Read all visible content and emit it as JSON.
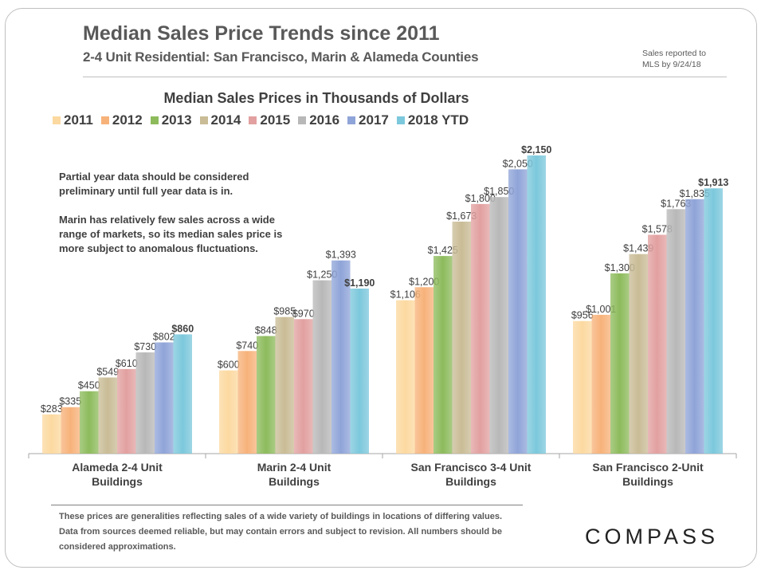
{
  "header": {
    "title": "Median Sales Price Trends since 2011",
    "subtitle": "2-4 Unit Residential: San Francisco, Marin & Alameda Counties",
    "note_line1": "Sales reported to",
    "note_line2": "MLS by 9/24/18"
  },
  "annotation": {
    "para1": "Partial year data should be considered preliminary until full year data is in.",
    "para2": "Marin has relatively few sales across a wide range of markets, so its median sales price is more subject to anomalous fluctuations."
  },
  "footer": {
    "disclaimer": "These prices are generalities reflecting sales of a wide variety of buildings in locations of differing values. Data from sources deemed reliable, but may contain errors and subject to revision. All numbers  should be considered approximations.",
    "logo": "COMPASS"
  },
  "chart_data": {
    "type": "bar",
    "title": "Median Sales Prices in Thousands of Dollars",
    "categories": [
      [
        "Alameda 2-4 Unit",
        "Buildings"
      ],
      [
        "Marin 2-4 Unit",
        "Buildings"
      ],
      [
        "San Francisco 3-4 Unit",
        "Buildings"
      ],
      [
        "San Francisco 2-Unit",
        "Buildings"
      ]
    ],
    "ylim": [
      0,
      2150
    ],
    "legend_position": "top",
    "grid": false,
    "series": [
      {
        "name": "2011",
        "color": "#fcd9a0",
        "values": [
          283,
          600,
          1106,
          956
        ],
        "labels": [
          "$283",
          "$600",
          "$1,106",
          "$956"
        ]
      },
      {
        "name": "2012",
        "color": "#f7b27a",
        "values": [
          335,
          740,
          1200,
          1001
        ],
        "labels": [
          "$335",
          "$740",
          "$1,200",
          "$1,001"
        ]
      },
      {
        "name": "2013",
        "color": "#8dbb5c",
        "values": [
          450,
          848,
          1425,
          1300
        ],
        "labels": [
          "$450",
          "$848",
          "$1,425",
          "$1,300"
        ]
      },
      {
        "name": "2014",
        "color": "#c9bc96",
        "values": [
          549,
          985,
          1673,
          1439
        ],
        "labels": [
          "$549",
          "$985",
          "$1,673",
          "$1,439"
        ]
      },
      {
        "name": "2015",
        "color": "#e2a0a0",
        "values": [
          610,
          970,
          1800,
          1578
        ],
        "labels": [
          "$610",
          "$970",
          "$1,800",
          "$1,578"
        ]
      },
      {
        "name": "2016",
        "color": "#b8b8b8",
        "values": [
          730,
          1250,
          1850,
          1763
        ],
        "labels": [
          "$730",
          "$1,250",
          "$1,850",
          "$1,763"
        ]
      },
      {
        "name": "2017",
        "color": "#8fa4d8",
        "values": [
          802,
          1393,
          2050,
          1835
        ],
        "labels": [
          "$802",
          "$1,393",
          "$2,050",
          "$1,835"
        ]
      },
      {
        "name": "2018 YTD",
        "color": "#7cc8dc",
        "values": [
          860,
          1190,
          2150,
          1913
        ],
        "labels": [
          "$860",
          "$1,190",
          "$2,150",
          "$1,913"
        ],
        "bold_labels": true
      }
    ]
  }
}
